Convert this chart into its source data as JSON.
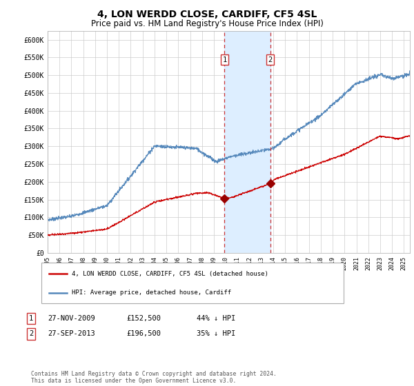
{
  "title": "4, LON WERDD CLOSE, CARDIFF, CF5 4SL",
  "subtitle": "Price paid vs. HM Land Registry's House Price Index (HPI)",
  "title_fontsize": 10,
  "subtitle_fontsize": 8.5,
  "ylabel_ticks": [
    "£0",
    "£50K",
    "£100K",
    "£150K",
    "£200K",
    "£250K",
    "£300K",
    "£350K",
    "£400K",
    "£450K",
    "£500K",
    "£550K",
    "£600K"
  ],
  "ytick_values": [
    0,
    50000,
    100000,
    150000,
    200000,
    250000,
    300000,
    350000,
    400000,
    450000,
    500000,
    550000,
    600000
  ],
  "ylim": [
    0,
    625000
  ],
  "sale1_date_num": 2009.9,
  "sale1_price": 152500,
  "sale1_label": "1",
  "sale2_date_num": 2013.75,
  "sale2_price": 196500,
  "sale2_label": "2",
  "shaded_x_start": 2009.9,
  "shaded_x_end": 2013.75,
  "shade_color": "#ddeeff",
  "dashed_color": "#cc3333",
  "red_line_color": "#cc0000",
  "blue_line_color": "#5588bb",
  "marker_color": "#990000",
  "grid_color": "#cccccc",
  "background_color": "#ffffff",
  "legend_label_red": "4, LON WERDD CLOSE, CARDIFF, CF5 4SL (detached house)",
  "legend_label_blue": "HPI: Average price, detached house, Cardiff",
  "table_rows": [
    {
      "num": "1",
      "date": "27-NOV-2009",
      "price": "£152,500",
      "pct": "44% ↓ HPI"
    },
    {
      "num": "2",
      "date": "27-SEP-2013",
      "price": "£196,500",
      "pct": "35% ↓ HPI"
    }
  ],
  "footnote": "Contains HM Land Registry data © Crown copyright and database right 2024.\nThis data is licensed under the Open Government Licence v3.0.",
  "xmin": 1995.0,
  "xmax": 2025.5,
  "num_box_color": "#cc3333"
}
